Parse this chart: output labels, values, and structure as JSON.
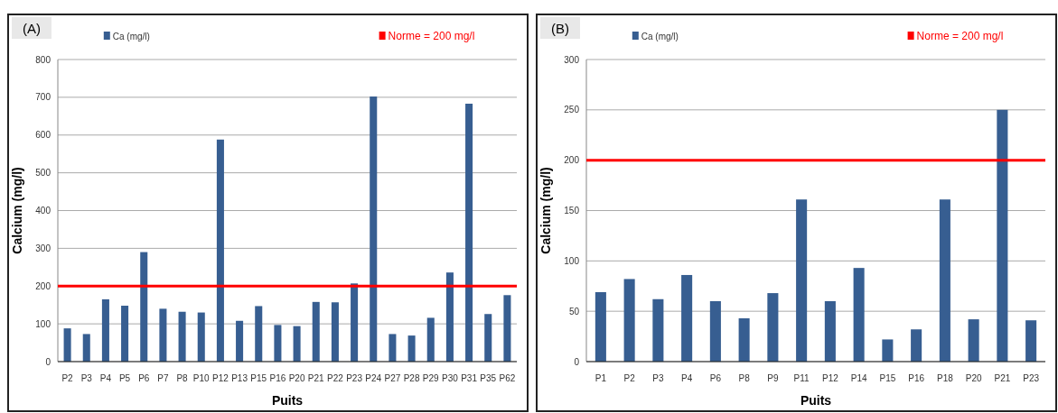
{
  "chart_data": [
    {
      "type": "bar",
      "title": "(A)",
      "xlabel": "Puits",
      "ylabel": "Calcium  (mg/l)",
      "categories": [
        "P2",
        "P3",
        "P4",
        "P5",
        "P6",
        "P7",
        "P8",
        "P10",
        "P12",
        "P13",
        "P15",
        "P16",
        "P20",
        "P21",
        "P22",
        "P23",
        "P24",
        "P27",
        "P28",
        "P29",
        "P30",
        "P31",
        "P35",
        "P62"
      ],
      "series": [
        {
          "name": "Ca (mg/l)",
          "color": "#375e91",
          "values": [
            88,
            73,
            165,
            148,
            290,
            140,
            132,
            130,
            588,
            108,
            147,
            97,
            94,
            158,
            157,
            207,
            702,
            73,
            69,
            116,
            236,
            683,
            126,
            176
          ]
        }
      ],
      "ylim": [
        0,
        800
      ],
      "yticks": [
        0,
        100,
        200,
        300,
        400,
        500,
        600,
        700,
        800
      ],
      "grid": "y",
      "legend": "top",
      "ref_lines": [
        {
          "axis": "y",
          "value": 200,
          "label": "Norme = 200 mg/l",
          "color": "#ff0000"
        }
      ]
    },
    {
      "type": "bar",
      "title": "(B)",
      "xlabel": "Puits",
      "ylabel": "Calcium  (mg/l)",
      "categories": [
        "P1",
        "P2",
        "P3",
        "P4",
        "P6",
        "P8",
        "P9",
        "P11",
        "P12",
        "P14",
        "P15",
        "P16",
        "P18",
        "P20",
        "P21",
        "P23"
      ],
      "series": [
        {
          "name": "Ca (mg/l)",
          "color": "#375e91",
          "values": [
            69,
            82,
            62,
            86,
            60,
            43,
            68,
            161,
            60,
            93,
            22,
            32,
            161,
            42,
            250,
            41
          ]
        }
      ],
      "ylim": [
        0,
        300
      ],
      "yticks": [
        0,
        50,
        100,
        150,
        200,
        250,
        300
      ],
      "grid": "y",
      "legend": "top",
      "ref_lines": [
        {
          "axis": "y",
          "value": 200,
          "label": "Norme = 200 mg/l",
          "color": "#ff0000"
        }
      ]
    }
  ]
}
